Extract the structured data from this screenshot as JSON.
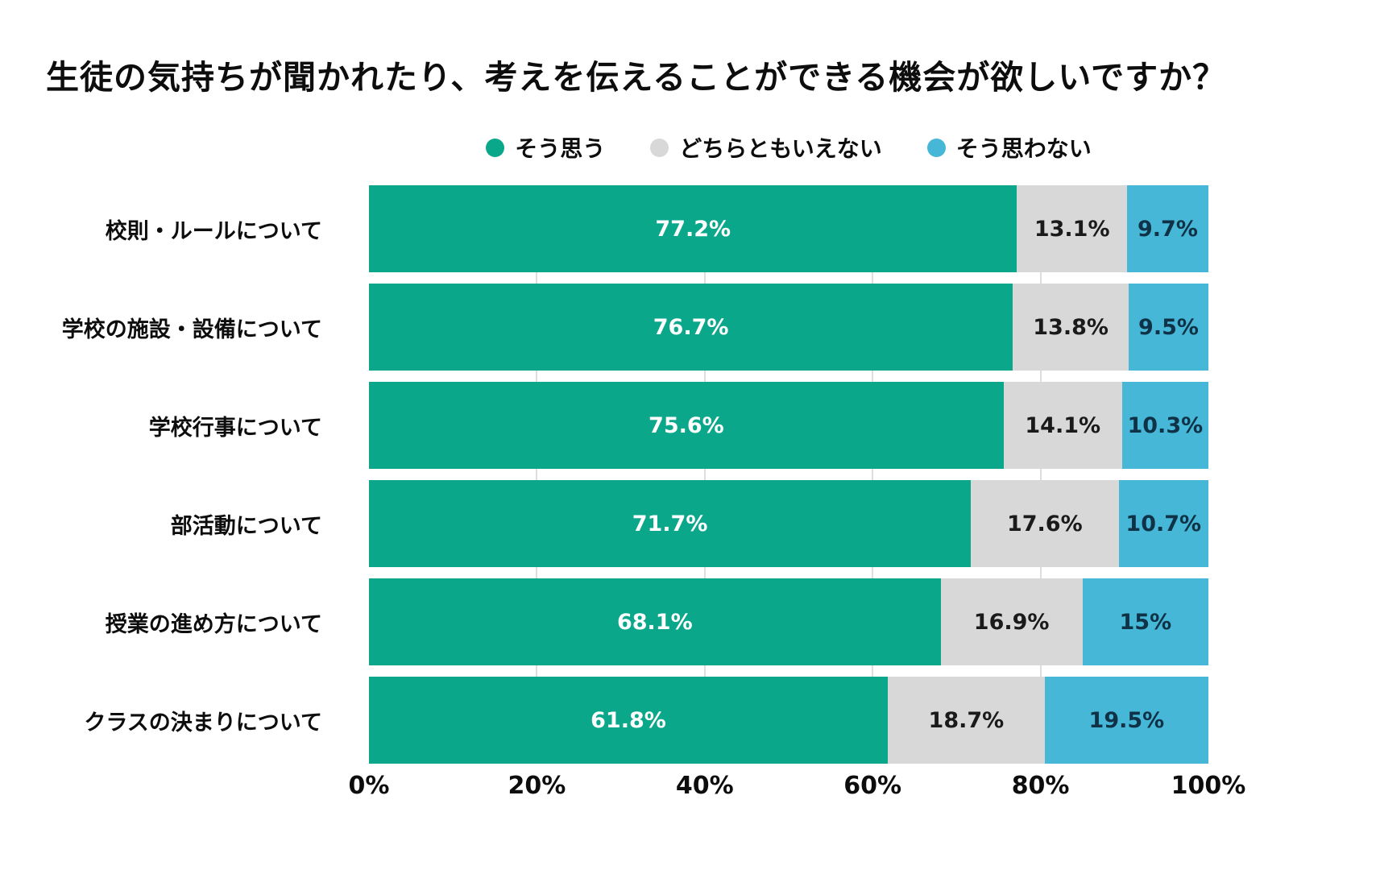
{
  "chart_data": {
    "type": "bar",
    "orientation": "horizontal",
    "stacked": true,
    "title": "生徒の気持ちが聞かれたり、考えを伝えることができる機会が欲しいですか？",
    "categories": [
      "校則・ルールについて",
      "学校の施設・設備について",
      "学校行事について",
      "部活動について",
      "授業の進め方について",
      "クラスの決まりについて"
    ],
    "series": [
      {
        "name": "そう思う",
        "color": "#0ba78b",
        "label_color": "#ffffff",
        "values": [
          77.2,
          76.7,
          75.6,
          71.7,
          68.1,
          61.8
        ]
      },
      {
        "name": "どちらともいえない",
        "color": "#d8d8d8",
        "label_color": "#1a1a1a",
        "values": [
          13.1,
          13.8,
          14.1,
          17.6,
          16.9,
          18.7
        ]
      },
      {
        "name": "そう思わない",
        "color": "#47b7d8",
        "label_color": "#0f3247",
        "values": [
          9.7,
          9.5,
          10.3,
          10.7,
          15,
          19.5
        ]
      }
    ],
    "value_suffix": "%",
    "x_ticks": [
      "0%",
      "20%",
      "40%",
      "60%",
      "80%",
      "100%"
    ],
    "xlim": [
      0,
      100
    ],
    "grid": true,
    "legend_position": "top"
  }
}
